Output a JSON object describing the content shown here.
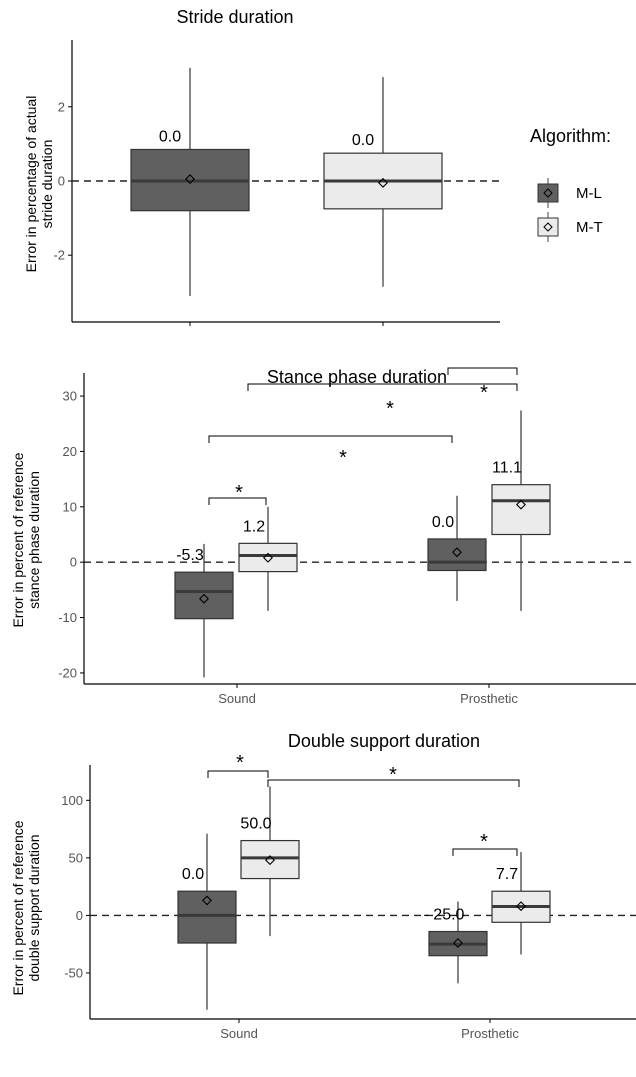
{
  "chart_data": [
    {
      "type": "boxplot",
      "title": "Stride duration",
      "ylabel": "Error in percentage of actual stride duration",
      "ylim": [
        -3.8,
        3.8
      ],
      "yticks": [
        -2,
        0,
        2
      ],
      "categories": [
        ""
      ],
      "boxes": [
        {
          "category": "",
          "series": "M-L",
          "whisker_low": -3.1,
          "q1": -0.8,
          "median": 0.0,
          "q3": 0.85,
          "whisker_high": 3.05,
          "mean": 0.05,
          "label": "0.0"
        },
        {
          "category": "",
          "series": "M-T",
          "whisker_low": -2.85,
          "q1": -0.75,
          "median": 0.0,
          "q3": 0.75,
          "whisker_high": 2.8,
          "mean": -0.05,
          "label": "0.0"
        }
      ],
      "comparisons": []
    },
    {
      "type": "boxplot",
      "title": "Stance phase duration",
      "ylabel": "Error in percent of reference stance phase duration",
      "ylim": [
        -22,
        32
      ],
      "yticks": [
        -20,
        -10,
        0,
        10,
        20,
        30
      ],
      "categories": [
        "Sound",
        "Prosthetic"
      ],
      "boxes": [
        {
          "category": "Sound",
          "series": "M-L",
          "whisker_low": -20.8,
          "q1": -10.2,
          "median": -5.3,
          "q3": -1.8,
          "whisker_high": 3.3,
          "mean": -6.6,
          "label": "-5.3"
        },
        {
          "category": "Sound",
          "series": "M-T",
          "whisker_low": -8.8,
          "q1": -1.7,
          "median": 1.2,
          "q3": 3.4,
          "whisker_high": 10.0,
          "mean": 0.8,
          "label": "1.2"
        },
        {
          "category": "Prosthetic",
          "series": "M-L",
          "whisker_low": -7.0,
          "q1": -1.5,
          "median": 0.0,
          "q3": 4.2,
          "whisker_high": 12.0,
          "mean": 1.8,
          "label": "0.0"
        },
        {
          "category": "Prosthetic",
          "series": "M-T",
          "whisker_low": -8.8,
          "q1": 5.0,
          "median": 11.1,
          "q3": 14.0,
          "whisker_high": 27.4,
          "mean": 10.4,
          "label": "11.1"
        }
      ],
      "comparisons": [
        {
          "from": "Sound M-L",
          "to": "Sound M-T",
          "label": "*"
        },
        {
          "from": "Sound M-L",
          "to": "Prosthetic M-L",
          "label": "*"
        },
        {
          "from": "Sound M-T",
          "to": "Prosthetic M-T",
          "label": "*"
        },
        {
          "from": "Prosthetic M-L",
          "to": "Prosthetic M-T",
          "label": "*"
        }
      ]
    },
    {
      "type": "boxplot",
      "title": "Double support duration",
      "ylabel": "Error in percent of reference double support duration",
      "ylim": [
        -90,
        135
      ],
      "yticks": [
        -50,
        0,
        50,
        100
      ],
      "categories": [
        "Sound",
        "Prosthetic"
      ],
      "boxes": [
        {
          "category": "Sound",
          "series": "M-L",
          "whisker_low": -82,
          "q1": -24,
          "median": 0.0,
          "q3": 21,
          "whisker_high": 71,
          "mean": 13,
          "label": "0.0"
        },
        {
          "category": "Sound",
          "series": "M-T",
          "whisker_low": -18,
          "q1": 32,
          "median": 50.0,
          "q3": 65,
          "whisker_high": 112,
          "mean": 48,
          "label": "50.0"
        },
        {
          "category": "Prosthetic",
          "series": "M-L",
          "whisker_low": -59,
          "q1": -35,
          "median": -25.0,
          "q3": -14,
          "whisker_high": 12,
          "mean": -24,
          "label": "- 25.0"
        },
        {
          "category": "Prosthetic",
          "series": "M-T",
          "whisker_low": -34,
          "q1": -6,
          "median": 7.7,
          "q3": 21,
          "whisker_high": 55,
          "mean": 8,
          "label": "7.7"
        }
      ],
      "comparisons": [
        {
          "from": "Sound M-L",
          "to": "Sound M-T",
          "label": "*"
        },
        {
          "from": "Sound M-T",
          "to": "Prosthetic M-T",
          "label": "*"
        },
        {
          "from": "Prosthetic M-L",
          "to": "Prosthetic M-T",
          "label": "*"
        }
      ]
    }
  ],
  "legend": {
    "title": "Algorithm:",
    "placement": "right of top panel",
    "items": [
      {
        "label": "M-L",
        "color": "#606060"
      },
      {
        "label": "M-T",
        "color": "#ebebeb"
      }
    ]
  }
}
